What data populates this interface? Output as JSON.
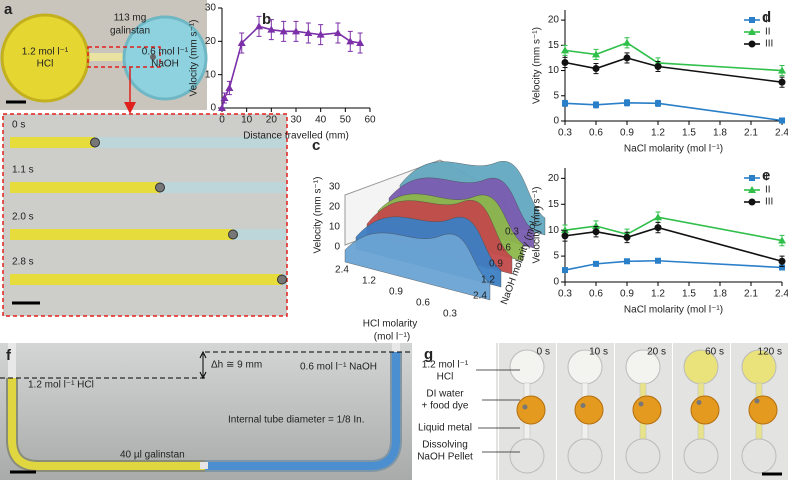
{
  "figure": {
    "a": {
      "label": "a",
      "left_reservoir": [
        "1.2 mol l⁻¹",
        "HCl"
      ],
      "right_reservoir": [
        "0.6 mol l⁻¹",
        "NaOH"
      ],
      "metal": [
        "113 mg",
        "galinstan"
      ],
      "times": [
        "0 s",
        "1.1 s",
        "2.0 s",
        "2.8 s"
      ]
    },
    "c": {
      "label": "c",
      "z_label": "Velocity (mm s⁻¹)",
      "z_ticks": [
        0,
        10,
        20,
        30
      ],
      "x_label": [
        "HCl molarity",
        "(mol l⁻¹)"
      ],
      "x_ticks": [
        2.4,
        1.2,
        0.9,
        0.6,
        0.3
      ],
      "y_label": "NaOH molarity (mol l⁻¹)",
      "y_ticks": [
        0.3,
        0.6,
        0.9,
        1.2,
        2.4
      ]
    },
    "f": {
      "label": "f",
      "delta_h": "Δh ≅ 9 mm",
      "naoh": "0.6 mol l⁻¹ NaOH",
      "hcl": "1.2 mol l⁻¹ HCl",
      "diameter": "Internal tube diameter = 1/8 In.",
      "metal": "40 µl galinstan"
    },
    "g": {
      "label": "g",
      "annotations": [
        "1.2 mol l⁻¹",
        "HCl",
        "DI water",
        "+ food dye",
        "Liquid metal",
        "Dissolving",
        "NaOH Pellet"
      ],
      "times": [
        "0 s",
        "10 s",
        "20 s",
        "60 s",
        "120 s"
      ]
    }
  },
  "chart_data": [
    {
      "type": "line",
      "label": "b",
      "x_label": "Distance travelled (mm)",
      "y_label": "Velocity (mm s⁻¹)",
      "x": [
        0,
        1,
        3,
        8,
        15,
        20,
        25,
        30,
        35,
        40,
        47,
        52,
        56
      ],
      "values": [
        0,
        3,
        6,
        19.5,
        24.5,
        23.5,
        23,
        23,
        22.5,
        22,
        22.5,
        20,
        19.5
      ],
      "errors": [
        0,
        1.5,
        2,
        3,
        3,
        3,
        3,
        3,
        3,
        3,
        3,
        3,
        3
      ],
      "color": "#7b2fa8",
      "marker": "triangle",
      "xlim": [
        0,
        60
      ],
      "xticks": [
        0,
        10,
        20,
        30,
        40,
        50,
        60
      ],
      "ylim": [
        0,
        30
      ],
      "yticks": [
        0,
        10,
        20,
        30
      ]
    },
    {
      "type": "line",
      "label": "d",
      "x_label": "NaCl molarity (mol l⁻¹)",
      "y_label": "Velocity (mm s⁻¹)",
      "x": [
        0.3,
        0.6,
        0.9,
        1.2,
        2.4
      ],
      "series": [
        {
          "name": "I",
          "color": "#2a7fc9",
          "marker": "square",
          "values": [
            3.5,
            3.2,
            3.6,
            3.5,
            0.1
          ],
          "errors": [
            0.6,
            0.6,
            0.6,
            0.6,
            0.2
          ]
        },
        {
          "name": "II",
          "color": "#2fbf4a",
          "marker": "triangle",
          "values": [
            14,
            13.2,
            15.5,
            11.5,
            10
          ],
          "errors": [
            1,
            1,
            1,
            1,
            1
          ]
        },
        {
          "name": "III",
          "color": "#111111",
          "marker": "circle",
          "values": [
            11.6,
            10.4,
            12.5,
            10.8,
            7.7
          ],
          "errors": [
            1,
            1,
            1,
            1,
            1
          ]
        }
      ],
      "xlim": [
        0.3,
        2.4
      ],
      "xticks": [
        0.3,
        0.6,
        0.9,
        1.2,
        1.5,
        1.8,
        2.1,
        2.4
      ],
      "ylim": [
        0,
        22
      ],
      "yticks": [
        0,
        5,
        10,
        15,
        20
      ],
      "legend": "top-right"
    },
    {
      "type": "line",
      "label": "e",
      "x_label": "NaCl molarity (mol l⁻¹)",
      "y_label": "Velocity (mm s⁻¹)",
      "x": [
        0.3,
        0.6,
        0.9,
        1.2,
        2.4
      ],
      "series": [
        {
          "name": "I",
          "color": "#2a7fc9",
          "marker": "square",
          "values": [
            2.3,
            3.5,
            4,
            4.1,
            2.8
          ],
          "errors": [
            0.4,
            0.4,
            0.4,
            0.4,
            0.4
          ]
        },
        {
          "name": "II",
          "color": "#2fbf4a",
          "marker": "triangle",
          "values": [
            10,
            10.8,
            9.2,
            12.5,
            8
          ],
          "errors": [
            1,
            1,
            1,
            1,
            1
          ]
        },
        {
          "name": "III",
          "color": "#111111",
          "marker": "circle",
          "values": [
            8.9,
            9.7,
            8.6,
            10.5,
            4
          ],
          "errors": [
            1,
            1,
            1,
            1,
            1
          ]
        }
      ],
      "xlim": [
        0.3,
        2.4
      ],
      "xticks": [
        0.3,
        0.6,
        0.9,
        1.2,
        1.5,
        1.8,
        2.1,
        2.4
      ],
      "ylim": [
        0,
        22
      ],
      "yticks": [
        0,
        5,
        10,
        15,
        20
      ],
      "legend": "top-right"
    }
  ]
}
